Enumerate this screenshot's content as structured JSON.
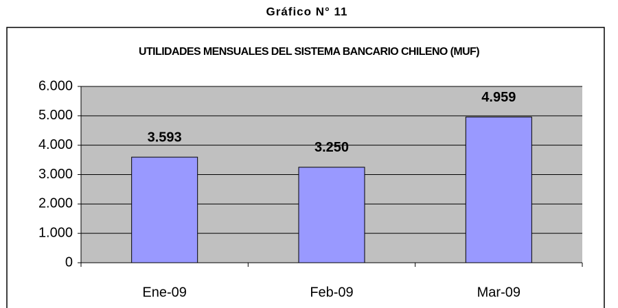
{
  "caption": "Gráfico N° 11",
  "chart_data": {
    "type": "bar",
    "title": "UTILIDADES MENSUALES DEL SISTEMA BANCARIO CHILENO (MUF)",
    "categories": [
      "Ene-09",
      "Feb-09",
      "Mar-09"
    ],
    "values": [
      3593,
      3250,
      4959
    ],
    "value_labels": [
      "3.593",
      "3.250",
      "4.959"
    ],
    "color": "#9999ff",
    "ylim": [
      0,
      6000
    ],
    "yticks": [
      0,
      {
        "value": 1000,
        "label": "1.000"
      },
      {
        "value": 2000,
        "label": "2.000"
      },
      {
        "value": 3000,
        "label": "3.000"
      },
      {
        "value": 4000,
        "label": "4.000"
      },
      {
        "value": 5000,
        "label": "5.000"
      },
      {
        "value": 6000,
        "label": "6.000"
      }
    ],
    "grid": true
  }
}
